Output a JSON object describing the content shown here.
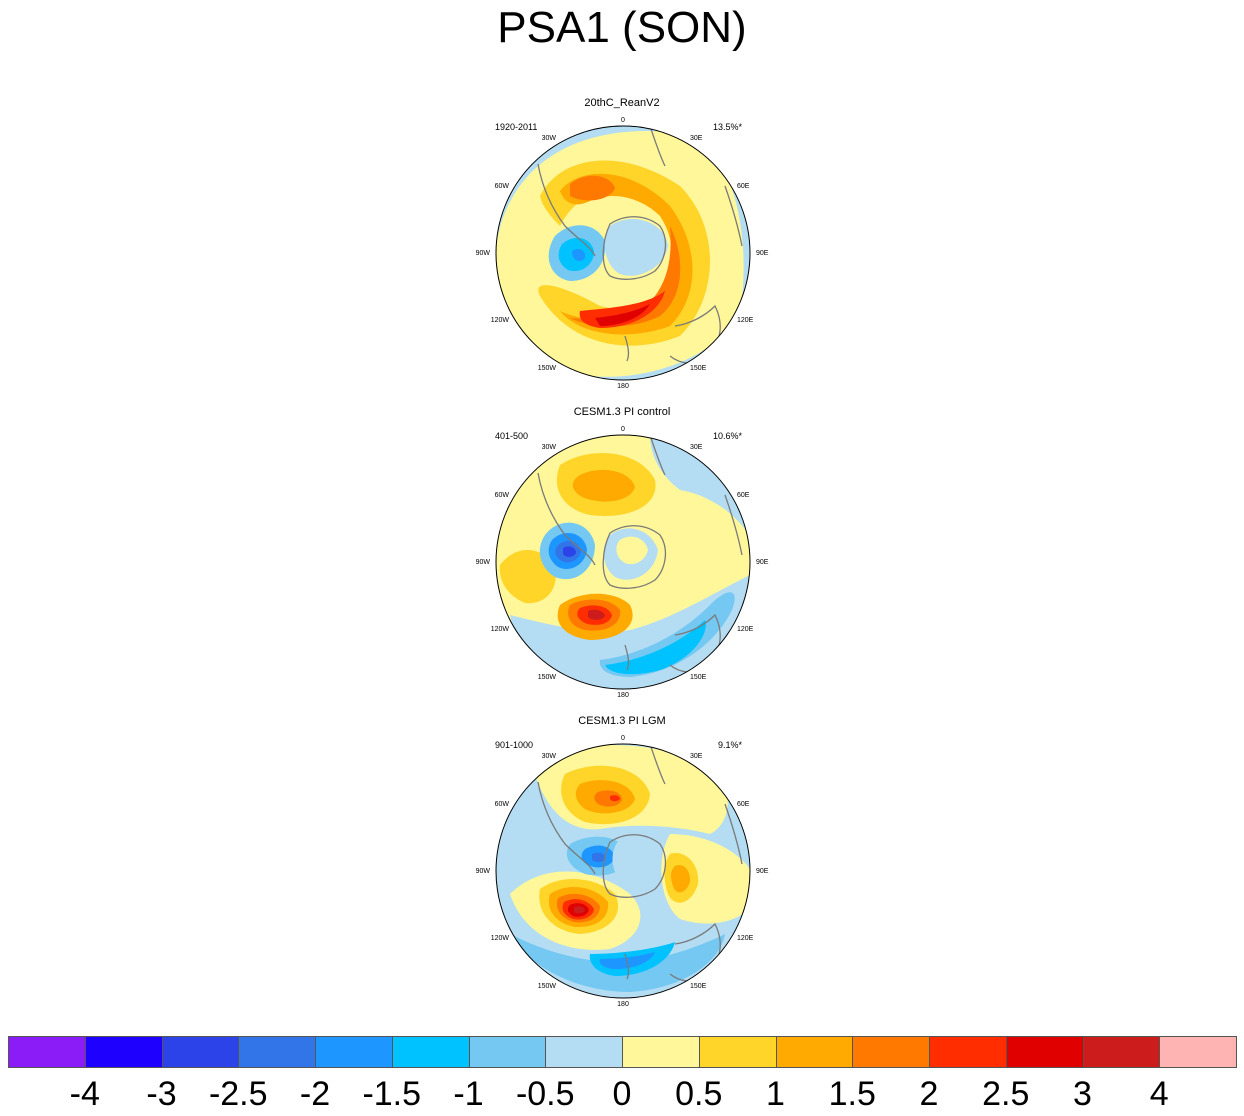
{
  "title": "PSA1 (SON)",
  "panels": [
    {
      "title": "20thC_ReanV2",
      "period": "1920-2011",
      "percent": "13.5%*"
    },
    {
      "title": "CESM1.3 PI control",
      "period": "401-500",
      "percent": "10.6%*"
    },
    {
      "title": "CESM1.3 PI LGM",
      "period": "901-1000",
      "percent": "9.1%*"
    }
  ],
  "longitude_labels": [
    "0",
    "30E",
    "60E",
    "90E",
    "120E",
    "150E",
    "180",
    "150W",
    "120W",
    "90W",
    "60W",
    "30W"
  ],
  "colorbar": {
    "colors": [
      "#8b1cf7",
      "#1e00ff",
      "#2b43e8",
      "#3175e8",
      "#1e96ff",
      "#00c2ff",
      "#74c8f2",
      "#b4ddf3",
      "#fff799",
      "#ffd52a",
      "#ffaa00",
      "#ff7800",
      "#ff2d00",
      "#e00000",
      "#cc1c1c",
      "#ffb4b4"
    ],
    "labels": [
      "-4",
      "-3",
      "-2.5",
      "-2",
      "-1.5",
      "-1",
      "-0.5",
      "0",
      "0.5",
      "1",
      "1.5",
      "2",
      "2.5",
      "3",
      "4"
    ]
  },
  "colors": {
    "coastline": "#7a7a7a",
    "background": "#ffffff"
  }
}
